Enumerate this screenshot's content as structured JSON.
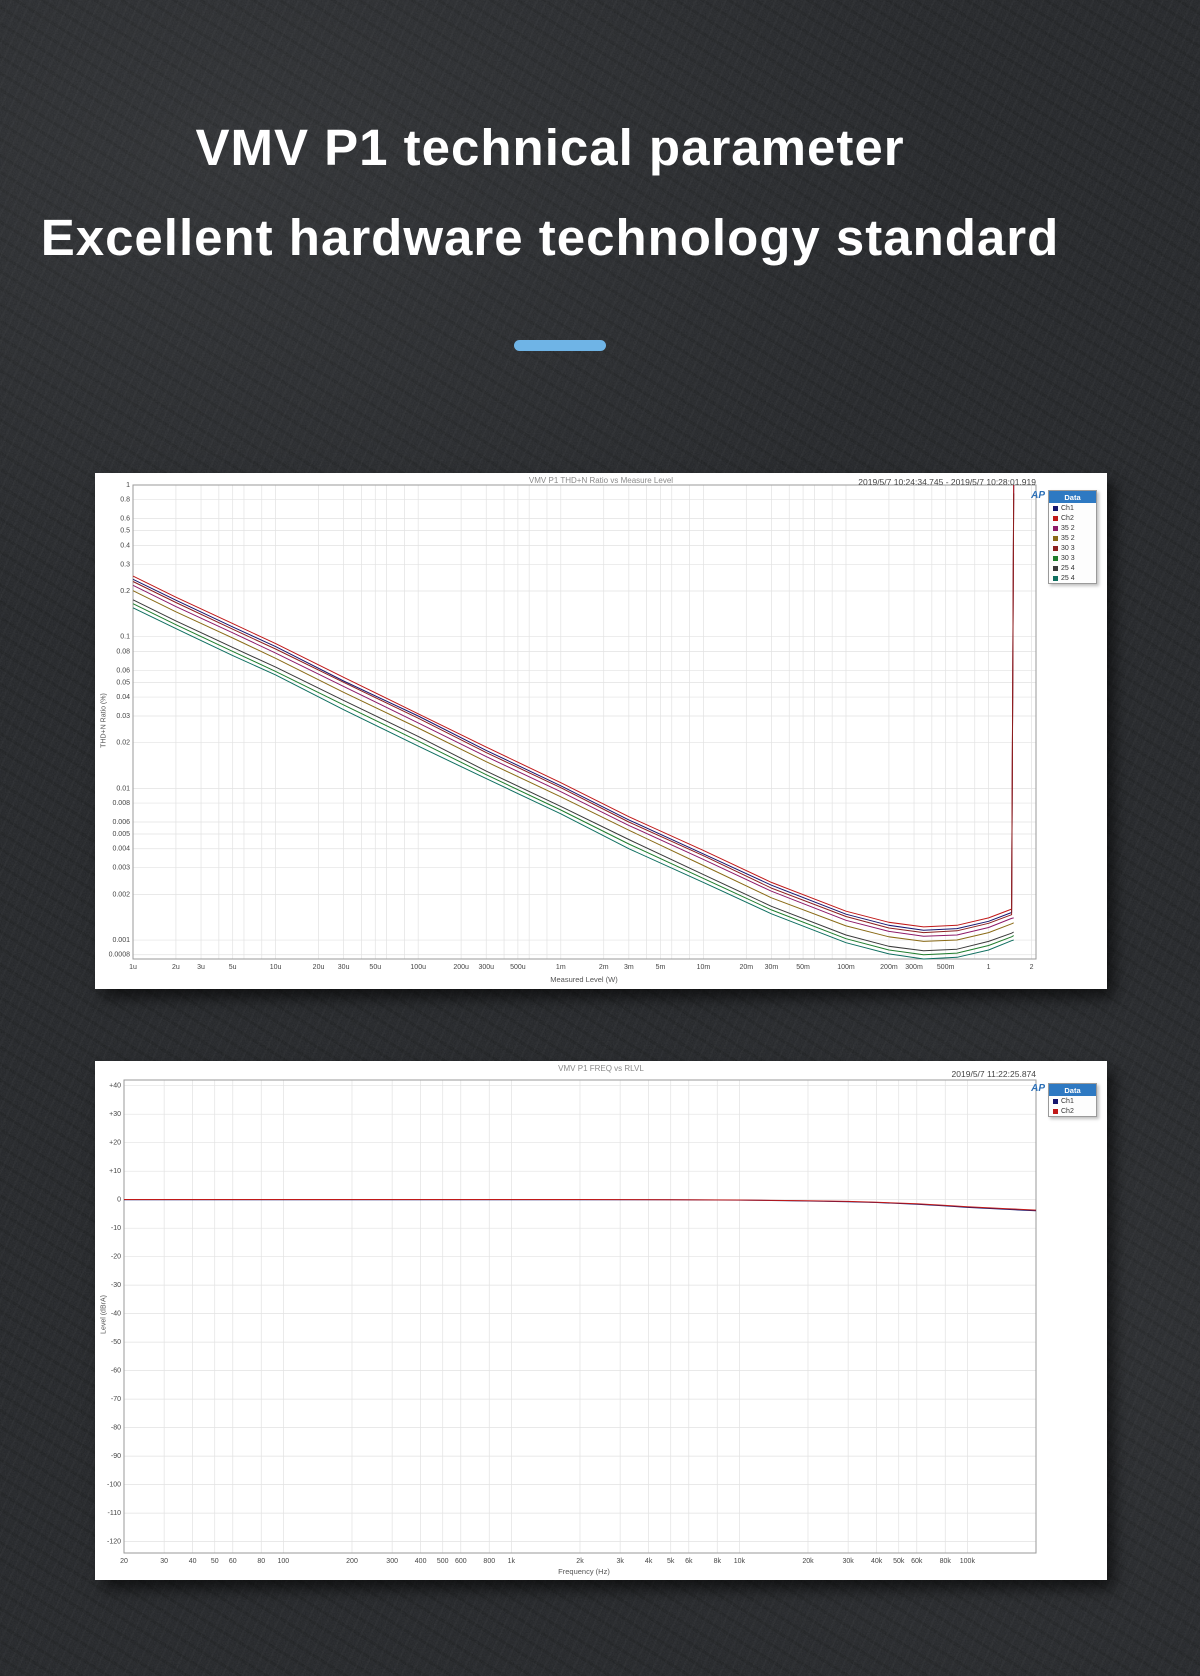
{
  "header": {
    "line1": "VMV P1 technical parameter",
    "line2": "Excellent hardware technology standard",
    "accent_color": "#6fb4e6"
  },
  "chart_data": [
    {
      "type": "line",
      "title": "VMV P1 THD+N Ratio vs Measure Level",
      "timestamp": "2019/5/7 10:24:34.745 - 2019/5/7 10:28:01.919",
      "logo": "AP",
      "legend_title": "Data",
      "legend_position": "right",
      "grid": true,
      "xlabel": "Measured Level (W)",
      "ylabel": "THD+N Ratio (%)",
      "xscale": "log",
      "yscale": "log",
      "xlim": [
        1e-06,
        2.15
      ],
      "ylim": [
        0.00075,
        1.0
      ],
      "xticks": [
        [
          1e-06,
          "1u"
        ],
        [
          2e-06,
          "2u"
        ],
        [
          3e-06,
          "3u"
        ],
        [
          5e-06,
          "5u"
        ],
        [
          1e-05,
          "10u"
        ],
        [
          2e-05,
          "20u"
        ],
        [
          3e-05,
          "30u"
        ],
        [
          5e-05,
          "50u"
        ],
        [
          0.0001,
          "100u"
        ],
        [
          0.0002,
          "200u"
        ],
        [
          0.0003,
          "300u"
        ],
        [
          0.0005,
          "500u"
        ],
        [
          0.001,
          "1m"
        ],
        [
          0.002,
          "2m"
        ],
        [
          0.003,
          "3m"
        ],
        [
          0.005,
          "5m"
        ],
        [
          0.01,
          "10m"
        ],
        [
          0.02,
          "20m"
        ],
        [
          0.03,
          "30m"
        ],
        [
          0.05,
          "50m"
        ],
        [
          0.1,
          "100m"
        ],
        [
          0.2,
          "200m"
        ],
        [
          0.3,
          "300m"
        ],
        [
          0.5,
          "500m"
        ],
        [
          1,
          "1"
        ],
        [
          2,
          "2"
        ]
      ],
      "yticks": [
        [
          1,
          "1"
        ],
        [
          0.8,
          "0.8"
        ],
        [
          0.6,
          "0.6"
        ],
        [
          0.5,
          "0.5"
        ],
        [
          0.4,
          "0.4"
        ],
        [
          0.3,
          "0.3"
        ],
        [
          0.2,
          "0.2"
        ],
        [
          0.1,
          "0.1"
        ],
        [
          0.08,
          "0.08"
        ],
        [
          0.06,
          "0.06"
        ],
        [
          0.05,
          "0.05"
        ],
        [
          0.04,
          "0.04"
        ],
        [
          0.03,
          "0.03"
        ],
        [
          0.02,
          "0.02"
        ],
        [
          0.01,
          "0.01"
        ],
        [
          0.008,
          "0.008"
        ],
        [
          0.006,
          "0.006"
        ],
        [
          0.005,
          "0.005"
        ],
        [
          0.004,
          "0.004"
        ],
        [
          0.003,
          "0.003"
        ],
        [
          0.002,
          "0.002"
        ],
        [
          0.001,
          "0.001"
        ],
        [
          0.0008,
          "0.0008"
        ]
      ],
      "x": [
        1e-06,
        2e-06,
        5e-06,
        1e-05,
        3e-05,
        0.0001,
        0.0003,
        0.001,
        0.003,
        0.01,
        0.03,
        0.1,
        0.2,
        0.35,
        0.6,
        1.0,
        1.45,
        1.5
      ],
      "series": [
        {
          "name": "Ch1",
          "color": "#16166e",
          "y": [
            0.239,
            0.174,
            0.116,
            0.086,
            0.051,
            0.03,
            0.0178,
            0.0104,
            0.0062,
            0.0037,
            0.0023,
            0.00148,
            0.00125,
            0.00116,
            0.00119,
            0.00133,
            0.00152,
            1.0
          ]
        },
        {
          "name": "Ch2",
          "color": "#c01818",
          "y": [
            0.251,
            0.182,
            0.122,
            0.09,
            0.054,
            0.031,
            0.0187,
            0.0109,
            0.0065,
            0.0039,
            0.0024,
            0.00155,
            0.00131,
            0.00122,
            0.00125,
            0.0014,
            0.0016,
            1.0
          ]
        },
        {
          "name": "35 2",
          "color": "#8e1a68",
          "y": [
            0.218,
            0.158,
            0.106,
            0.078,
            0.047,
            0.027,
            0.0162,
            0.0095,
            0.0057,
            0.0034,
            0.0021,
            0.00135,
            0.00114,
            0.00106,
            0.00108,
            0.00121,
            0.00139,
            0.0014
          ]
        },
        {
          "name": "35 2",
          "color": "#8a6a16",
          "y": [
            0.201,
            0.146,
            0.098,
            0.072,
            0.043,
            0.025,
            0.015,
            0.0088,
            0.0053,
            0.0031,
            0.0019,
            0.00124,
            0.00105,
            0.00098,
            0.001,
            0.00112,
            0.00128,
            0.0013
          ]
        },
        {
          "name": "30 3",
          "color": "#8c1f1f",
          "y": [
            0.231,
            0.168,
            0.112,
            0.083,
            0.05,
            0.029,
            0.0172,
            0.0101,
            0.006,
            0.0036,
            0.0022,
            0.00143,
            0.0012,
            0.00112,
            0.00115,
            0.00129,
            0.00147,
            0.88
          ]
        },
        {
          "name": "30 3",
          "color": "#1e7d2c",
          "y": [
            0.165,
            0.12,
            0.08,
            0.059,
            0.0355,
            0.0205,
            0.0123,
            0.0072,
            0.0043,
            0.00255,
            0.00158,
            0.00102,
            0.00086,
            0.0008,
            0.00082,
            0.00092,
            0.00105,
            0.00107
          ]
        },
        {
          "name": "25 4",
          "color": "#3a3a3a",
          "y": [
            0.175,
            0.127,
            0.085,
            0.063,
            0.038,
            0.022,
            0.013,
            0.0076,
            0.0046,
            0.0027,
            0.00167,
            0.00108,
            0.00091,
            0.00085,
            0.00087,
            0.00098,
            0.00111,
            0.00113
          ]
        },
        {
          "name": "25 4",
          "color": "#0f6f60",
          "y": [
            0.155,
            0.113,
            0.075,
            0.056,
            0.033,
            0.019,
            0.0116,
            0.0068,
            0.004,
            0.0024,
            0.00149,
            0.00096,
            0.00081,
            0.00075,
            0.00077,
            0.00086,
            0.00099,
            0.001
          ]
        }
      ]
    },
    {
      "type": "line",
      "title": "VMV P1 FREQ vs RLVL",
      "timestamp": "2019/5/7 11:22:25.874",
      "logo": "AP",
      "legend_title": "Data",
      "legend_position": "right",
      "grid": true,
      "xlabel": "Frequency (Hz)",
      "ylabel": "Level (dBrA)",
      "xscale": "log",
      "yscale": "linear",
      "xlim": [
        20,
        200000
      ],
      "ylim": [
        -124,
        42
      ],
      "xticks": [
        [
          20,
          "20"
        ],
        [
          30,
          "30"
        ],
        [
          40,
          "40"
        ],
        [
          50,
          "50"
        ],
        [
          60,
          "60"
        ],
        [
          80,
          "80"
        ],
        [
          100,
          "100"
        ],
        [
          200,
          "200"
        ],
        [
          300,
          "300"
        ],
        [
          400,
          "400"
        ],
        [
          500,
          "500"
        ],
        [
          600,
          "600"
        ],
        [
          800,
          "800"
        ],
        [
          1000,
          "1k"
        ],
        [
          2000,
          "2k"
        ],
        [
          3000,
          "3k"
        ],
        [
          4000,
          "4k"
        ],
        [
          5000,
          "5k"
        ],
        [
          6000,
          "6k"
        ],
        [
          8000,
          "8k"
        ],
        [
          10000,
          "10k"
        ],
        [
          20000,
          "20k"
        ],
        [
          30000,
          "30k"
        ],
        [
          40000,
          "40k"
        ],
        [
          50000,
          "50k"
        ],
        [
          60000,
          "60k"
        ],
        [
          80000,
          "80k"
        ],
        [
          100000,
          "100k"
        ]
      ],
      "yticks": [
        [
          40,
          "+40"
        ],
        [
          30,
          "+30"
        ],
        [
          20,
          "+20"
        ],
        [
          10,
          "+10"
        ],
        [
          0,
          "0"
        ],
        [
          -10,
          "-10"
        ],
        [
          -20,
          "-20"
        ],
        [
          -30,
          "-30"
        ],
        [
          -40,
          "-40"
        ],
        [
          -50,
          "-50"
        ],
        [
          -60,
          "-60"
        ],
        [
          -70,
          "-70"
        ],
        [
          -80,
          "-80"
        ],
        [
          -90,
          "-90"
        ],
        [
          -100,
          "-100"
        ],
        [
          -110,
          "-110"
        ],
        [
          -120,
          "-120"
        ]
      ],
      "x": [
        20,
        50,
        100,
        500,
        1000,
        2000,
        5000,
        10000,
        20000,
        30000,
        40000,
        60000,
        80000,
        100000,
        150000,
        200000
      ],
      "series": [
        {
          "name": "Ch1",
          "color": "#16166e",
          "y": [
            0,
            0,
            0,
            0,
            0,
            0,
            -0.05,
            -0.15,
            -0.45,
            -0.7,
            -1.0,
            -1.6,
            -2.2,
            -2.7,
            -3.4,
            -3.9
          ]
        },
        {
          "name": "Ch2",
          "color": "#c01818",
          "y": [
            0.05,
            0.05,
            0.05,
            0.05,
            0.05,
            0.05,
            0,
            -0.1,
            -0.4,
            -0.62,
            -0.9,
            -1.45,
            -2.0,
            -2.5,
            -3.15,
            -3.65
          ]
        }
      ]
    }
  ]
}
